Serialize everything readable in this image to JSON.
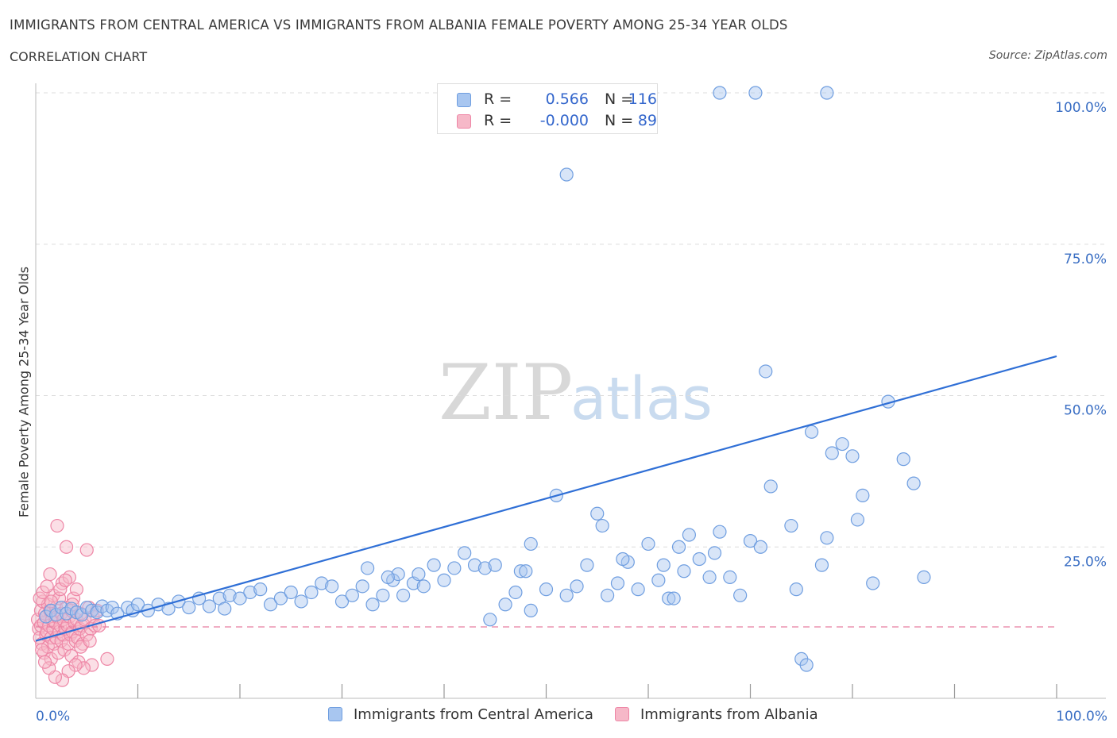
{
  "header": {
    "title": "IMMIGRANTS FROM CENTRAL AMERICA VS IMMIGRANTS FROM ALBANIA FEMALE POVERTY AMONG 25-34 YEAR OLDS",
    "subtitle": "CORRELATION CHART",
    "source": "Source: ZipAtlas.com"
  },
  "watermark": {
    "part1": "ZIP",
    "part2": "atlas"
  },
  "legend_top": {
    "rows": [
      {
        "r_label": "R =",
        "r_value": "0.566",
        "n_label": "N =",
        "n_value": "116",
        "color": "#a8c6f0"
      },
      {
        "r_label": "R =",
        "r_value": "-0.000",
        "n_label": "N =",
        "n_value": "89",
        "color": "#f6b8c8"
      }
    ]
  },
  "legend_bottom": {
    "items": [
      {
        "label": "Immigrants from Central America",
        "color": "#a8c6f0"
      },
      {
        "label": "Immigrants from Albania",
        "color": "#f6b8c8"
      }
    ]
  },
  "colors": {
    "blue_fill": "#a8c6f0",
    "blue_stroke": "#6f9ee0",
    "blue_line": "#2f6fd6",
    "pink_fill": "#f6b8c8",
    "pink_stroke": "#ee86a6",
    "pink_line": "#e87ea0",
    "grid": "#dcdcdc",
    "tick_text": "#3b6fc4"
  },
  "chart_data": {
    "type": "scatter",
    "title": "IMMIGRANTS FROM CENTRAL AMERICA VS IMMIGRANTS FROM ALBANIA FEMALE POVERTY AMONG 25-34 YEAR OLDS",
    "xlabel": "",
    "ylabel": "Female Poverty Among 25-34 Year Olds",
    "xlim": [
      0,
      100
    ],
    "ylim": [
      0,
      100
    ],
    "x_tick_labels": [
      "0.0%",
      "100.0%"
    ],
    "y_ticks": [
      25,
      50,
      75,
      100
    ],
    "y_tick_labels": [
      "25.0%",
      "50.0%",
      "75.0%",
      "100.0%"
    ],
    "grid": true,
    "legend_position": "top-center",
    "series": [
      {
        "name": "Immigrants from Central America",
        "trendline": [
          [
            0,
            9.5
          ],
          [
            100,
            56.5
          ]
        ],
        "points": [
          [
            1.0,
            13.5
          ],
          [
            1.5,
            14.5
          ],
          [
            2.0,
            13.8
          ],
          [
            2.5,
            15.0
          ],
          [
            3.0,
            14.0
          ],
          [
            3.5,
            14.8
          ],
          [
            4.0,
            14.2
          ],
          [
            4.5,
            13.8
          ],
          [
            5.0,
            15.0
          ],
          [
            5.5,
            14.5
          ],
          [
            6.0,
            14.2
          ],
          [
            6.5,
            15.2
          ],
          [
            7.0,
            14.5
          ],
          [
            7.5,
            15.0
          ],
          [
            8.0,
            14.0
          ],
          [
            9.0,
            15.0
          ],
          [
            9.5,
            14.5
          ],
          [
            10.0,
            15.5
          ],
          [
            11.0,
            14.5
          ],
          [
            12.0,
            15.5
          ],
          [
            13.0,
            14.8
          ],
          [
            14.0,
            16.0
          ],
          [
            15.0,
            15.0
          ],
          [
            16.0,
            16.5
          ],
          [
            17.0,
            15.2
          ],
          [
            18.0,
            16.5
          ],
          [
            18.5,
            14.8
          ],
          [
            19.0,
            17.0
          ],
          [
            20.0,
            16.5
          ],
          [
            21.0,
            17.5
          ],
          [
            22.0,
            18.0
          ],
          [
            23.0,
            15.5
          ],
          [
            24.0,
            16.5
          ],
          [
            25.0,
            17.5
          ],
          [
            26.0,
            16.0
          ],
          [
            27.0,
            17.5
          ],
          [
            28.0,
            19.0
          ],
          [
            29.0,
            18.5
          ],
          [
            30.0,
            16.0
          ],
          [
            31.0,
            17.0
          ],
          [
            32.0,
            18.5
          ],
          [
            33.0,
            15.5
          ],
          [
            34.0,
            17.0
          ],
          [
            35.0,
            19.5
          ],
          [
            35.5,
            20.5
          ],
          [
            36.0,
            17.0
          ],
          [
            37.0,
            19.0
          ],
          [
            37.5,
            20.5
          ],
          [
            38.0,
            18.5
          ],
          [
            39.0,
            22.0
          ],
          [
            40.0,
            19.5
          ],
          [
            41.0,
            21.5
          ],
          [
            42.0,
            24.0
          ],
          [
            43.0,
            22.0
          ],
          [
            44.0,
            21.5
          ],
          [
            45.0,
            22.0
          ],
          [
            46.0,
            15.5
          ],
          [
            47.0,
            17.5
          ],
          [
            47.5,
            21.0
          ],
          [
            48.0,
            21.0
          ],
          [
            48.5,
            25.5
          ],
          [
            50.0,
            18.0
          ],
          [
            51.0,
            33.5
          ],
          [
            52.0,
            17.0
          ],
          [
            53.0,
            18.5
          ],
          [
            54.0,
            22.0
          ],
          [
            55.0,
            30.5
          ],
          [
            55.5,
            28.5
          ],
          [
            56.0,
            17.0
          ],
          [
            57.0,
            19.0
          ],
          [
            58.0,
            22.5
          ],
          [
            59.0,
            18.0
          ],
          [
            60.0,
            25.5
          ],
          [
            61.0,
            19.5
          ],
          [
            61.5,
            22.0
          ],
          [
            62.0,
            16.5
          ],
          [
            63.0,
            25.0
          ],
          [
            64.0,
            27.0
          ],
          [
            65.0,
            23.0
          ],
          [
            66.0,
            20.0
          ],
          [
            66.5,
            24.0
          ],
          [
            67.0,
            27.5
          ],
          [
            68.0,
            20.0
          ],
          [
            69.0,
            17.0
          ],
          [
            70.0,
            26.0
          ],
          [
            71.0,
            25.0
          ],
          [
            71.5,
            54.0
          ],
          [
            72.0,
            35.0
          ],
          [
            74.0,
            28.5
          ],
          [
            75.0,
            6.5
          ],
          [
            75.5,
            5.5
          ],
          [
            76.0,
            44.0
          ],
          [
            77.0,
            22.0
          ],
          [
            77.5,
            26.5
          ],
          [
            78.0,
            40.5
          ],
          [
            79.0,
            42.0
          ],
          [
            80.0,
            40.0
          ],
          [
            80.5,
            29.5
          ],
          [
            81.0,
            33.5
          ],
          [
            82.0,
            19.0
          ],
          [
            83.5,
            49.0
          ],
          [
            85.0,
            39.5
          ],
          [
            86.0,
            35.5
          ],
          [
            87.0,
            20.0
          ],
          [
            52.0,
            86.5
          ],
          [
            67.0,
            100.0
          ],
          [
            70.5,
            100.0
          ],
          [
            77.5,
            100.0
          ],
          [
            74.5,
            18.0
          ],
          [
            62.5,
            16.5
          ],
          [
            48.5,
            14.5
          ],
          [
            44.5,
            13.0
          ],
          [
            57.5,
            23.0
          ],
          [
            63.5,
            21.0
          ],
          [
            32.5,
            21.5
          ],
          [
            34.5,
            20.0
          ]
        ]
      },
      {
        "name": "Immigrants from Albania",
        "trendline": [
          [
            0,
            11.8
          ],
          [
            100,
            11.8
          ]
        ],
        "points": [
          [
            0.2,
            13.0
          ],
          [
            0.3,
            11.5
          ],
          [
            0.4,
            10.0
          ],
          [
            0.5,
            14.5
          ],
          [
            0.5,
            12.0
          ],
          [
            0.6,
            9.0
          ],
          [
            0.7,
            16.0
          ],
          [
            0.8,
            12.5
          ],
          [
            0.8,
            7.5
          ],
          [
            0.9,
            14.0
          ],
          [
            1.0,
            10.5
          ],
          [
            1.0,
            13.5
          ],
          [
            1.1,
            11.0
          ],
          [
            1.2,
            15.5
          ],
          [
            1.2,
            8.5
          ],
          [
            1.3,
            12.0
          ],
          [
            1.4,
            20.5
          ],
          [
            1.4,
            14.5
          ],
          [
            1.5,
            10.0
          ],
          [
            1.5,
            6.5
          ],
          [
            1.6,
            13.0
          ],
          [
            1.7,
            11.5
          ],
          [
            1.7,
            17.0
          ],
          [
            1.8,
            9.0
          ],
          [
            1.9,
            12.5
          ],
          [
            2.0,
            15.0
          ],
          [
            2.0,
            10.0
          ],
          [
            2.1,
            28.5
          ],
          [
            2.1,
            13.5
          ],
          [
            2.2,
            7.5
          ],
          [
            2.3,
            11.0
          ],
          [
            2.3,
            16.5
          ],
          [
            2.4,
            12.0
          ],
          [
            2.5,
            9.5
          ],
          [
            2.5,
            14.0
          ],
          [
            2.6,
            19.0
          ],
          [
            2.7,
            10.5
          ],
          [
            2.7,
            13.0
          ],
          [
            2.8,
            8.0
          ],
          [
            2.9,
            11.5
          ],
          [
            3.0,
            25.0
          ],
          [
            3.0,
            15.0
          ],
          [
            3.1,
            12.0
          ],
          [
            3.2,
            9.0
          ],
          [
            3.3,
            13.5
          ],
          [
            3.3,
            20.0
          ],
          [
            3.4,
            10.5
          ],
          [
            3.5,
            14.5
          ],
          [
            3.5,
            7.0
          ],
          [
            3.6,
            11.0
          ],
          [
            3.7,
            16.5
          ],
          [
            3.8,
            12.5
          ],
          [
            3.9,
            9.5
          ],
          [
            4.0,
            13.0
          ],
          [
            4.0,
            18.0
          ],
          [
            4.1,
            10.0
          ],
          [
            4.2,
            6.0
          ],
          [
            4.3,
            11.5
          ],
          [
            4.4,
            14.0
          ],
          [
            4.5,
            12.0
          ],
          [
            4.6,
            9.0
          ],
          [
            4.8,
            13.0
          ],
          [
            5.0,
            24.5
          ],
          [
            5.0,
            10.5
          ],
          [
            5.2,
            15.0
          ],
          [
            5.4,
            11.5
          ],
          [
            5.5,
            5.5
          ],
          [
            5.6,
            13.5
          ],
          [
            5.8,
            12.0
          ],
          [
            6.0,
            14.5
          ],
          [
            4.7,
            5.0
          ],
          [
            3.9,
            5.5
          ],
          [
            3.2,
            4.5
          ],
          [
            2.6,
            3.0
          ],
          [
            1.9,
            3.5
          ],
          [
            1.3,
            5.0
          ],
          [
            0.9,
            6.0
          ],
          [
            0.6,
            8.0
          ],
          [
            0.4,
            16.5
          ],
          [
            0.7,
            17.5
          ],
          [
            1.1,
            18.5
          ],
          [
            2.4,
            18.0
          ],
          [
            3.6,
            15.5
          ],
          [
            4.4,
            8.5
          ],
          [
            5.3,
            9.5
          ],
          [
            6.2,
            12.0
          ],
          [
            1.5,
            16.0
          ],
          [
            2.9,
            19.5
          ],
          [
            7.0,
            6.5
          ]
        ]
      }
    ]
  },
  "axes": {
    "x_left_label": "0.0%",
    "x_right_label": "100.0%",
    "y_labels": [
      "25.0%",
      "50.0%",
      "75.0%",
      "100.0%"
    ],
    "y_title": "Female Poverty Among 25-34 Year Olds"
  }
}
